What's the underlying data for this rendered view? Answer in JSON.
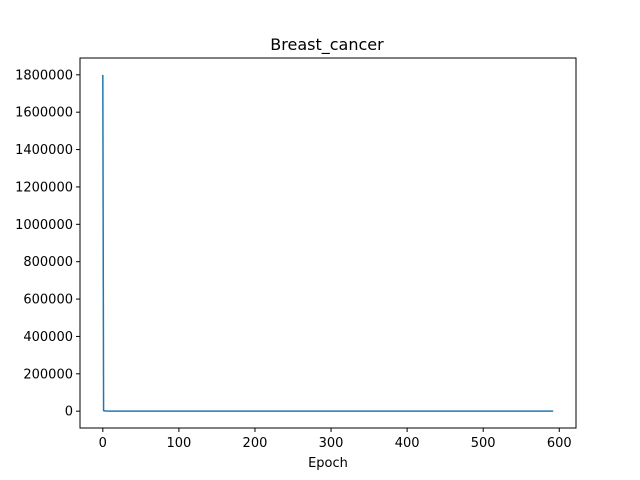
{
  "chart_data": {
    "type": "line",
    "title": "Breast_cancer",
    "xlabel": "Epoch",
    "ylabel": "",
    "xlim": [
      -30,
      622
    ],
    "ylim": [
      -90000,
      1890000
    ],
    "xticks": [
      0,
      100,
      200,
      300,
      400,
      500,
      600
    ],
    "yticks": [
      0,
      200000,
      400000,
      600000,
      800000,
      1000000,
      1200000,
      1400000,
      1600000,
      1800000
    ],
    "grid": false,
    "series": [
      {
        "color": "#1f77b4",
        "x": [
          0,
          1,
          2,
          5,
          10,
          20,
          50,
          100,
          200,
          300,
          400,
          500,
          592
        ],
        "y": [
          1800000,
          3000,
          1500,
          900,
          600,
          400,
          250,
          150,
          100,
          80,
          60,
          50,
          40
        ]
      }
    ]
  }
}
